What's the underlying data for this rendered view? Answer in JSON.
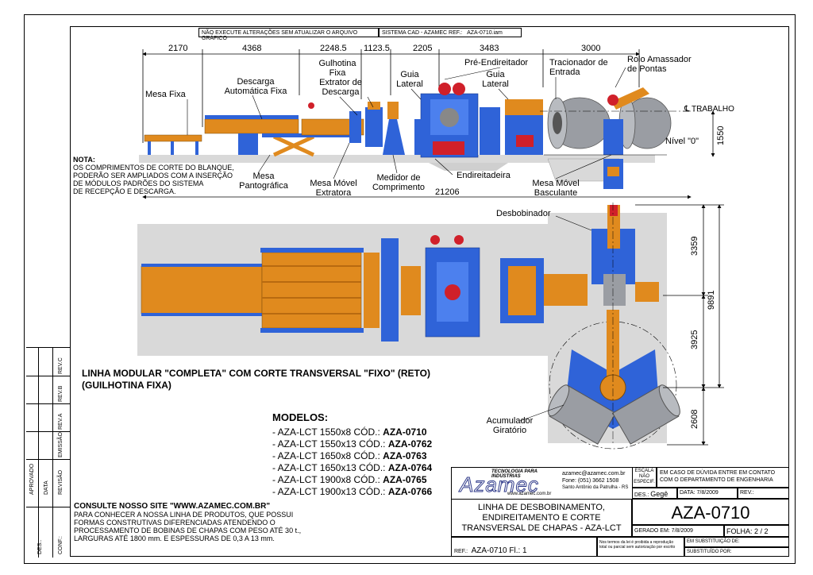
{
  "header": {
    "warning": "NÃO EXECUTE ALTERAÇÕES SEM ATUALIZAR O ARQUIVO GRÁFICO",
    "cad_ref_label": "SISTEMA CAD - AZAMEC REF.:",
    "cad_ref_value": "AZA-0710.iam"
  },
  "top_dimensions": [
    "2170",
    "4368",
    "2248.5",
    "1123.5",
    "2205",
    "3483",
    "3000"
  ],
  "overall_dimension": "21206",
  "vertical_dimensions": {
    "height": "1550",
    "d1": "3359",
    "d2": "3925",
    "total": "9891",
    "d3": "2608"
  },
  "labels": {
    "mesa_fixa": "Mesa Fixa",
    "descarga_auto": [
      "Descarga",
      "Automática Fixa"
    ],
    "gulhotina": [
      "Gulhotina",
      "Fixa"
    ],
    "extrator": [
      "Extrator de",
      "Descarga"
    ],
    "guia_lateral_1": [
      "Guia",
      "Lateral"
    ],
    "pre_endireitador": "Pré-Endireitador",
    "guia_lateral_2": [
      "Guia",
      "Lateral"
    ],
    "tracionador": [
      "Tracionador de",
      "Entrada"
    ],
    "rolo": [
      "Rolo Amassador",
      "de Pontas"
    ],
    "trabalho": "TRABALHO",
    "nivel": "Nível \"0\"",
    "mesa_pantografica": [
      "Mesa",
      "Pantográfica"
    ],
    "mesa_movel_extratora": [
      "Mesa Móvel",
      "Extratora"
    ],
    "medidor": [
      "Medidor de",
      "Comprimento"
    ],
    "endireitadeira": "Endireitadeira",
    "mesa_basculante": [
      "Mesa Móvel",
      "Basculante"
    ],
    "desbobinador": "Desbobinador",
    "acumulador": [
      "Acumulador",
      "Giratório"
    ]
  },
  "nota": [
    "NOTA:",
    "OS COMPRIMENTOS DE CORTE DO BLANQUE,",
    "PODERÃO SER AMPLIADOS COM A INSERÇÃO",
    "DE MÓDULOS PADRÕES DO SISTEMA",
    "DE RECEPÇÃO E DESCARGA."
  ],
  "title_main": [
    "LINHA MODULAR \"COMPLETA\" COM CORTE TRANSVERSAL \"FIXO\" (RETO)",
    "(GUILHOTINA FIXA)"
  ],
  "modelos_title": "MODELOS:",
  "modelos": [
    {
      "prefix": "- AZA-LCT 1550x8 CÓD.: ",
      "code": "AZA-0710"
    },
    {
      "prefix": "- AZA-LCT 1550x13 CÓD.: ",
      "code": "AZA-0762"
    },
    {
      "prefix": "- AZA-LCT 1650x8 CÓD.: ",
      "code": "AZA-0763"
    },
    {
      "prefix": "- AZA-LCT 1650x13 CÓD.: ",
      "code": "AZA-0764"
    },
    {
      "prefix": "- AZA-LCT 1900x8 CÓD.: ",
      "code": "AZA-0765"
    },
    {
      "prefix": "- AZA-LCT 1900x13 CÓD.: ",
      "code": "AZA-0766"
    }
  ],
  "consulte": [
    "CONSULTE NOSSO SITE \"WWW.AZAMEC.COM.BR\"",
    "PARA CONHECER A NOSSA LINHA DE PRODUTOS, QUE POSSUI",
    "FORMAS CONSTRUTIVAS DIFERENCIADAS ATENDENDO O",
    "PROCESSAMENTO DE BOBINAS DE CHAPAS COM PESO ATÉ 30 t.,",
    "LARGURAS ATÉ 1800 mm. E ESPESSURAS DE 0,3 A 13 mm."
  ],
  "left_strip": {
    "rev": [
      "REV.C",
      "REV.B",
      "REV.A"
    ],
    "emissao": "EMISSÃO",
    "revisao": "REVISÃO",
    "data": "DATA",
    "aprovado": "APROVADO",
    "des": "DES.:",
    "conf": "CONF.:"
  },
  "title_block": {
    "tagline": "TECNOLOGIA PARA INDÚSTRIAS",
    "logo": "Azamec",
    "web": "www.azamec.com.br",
    "email": "azamec@azamec.com.br",
    "fone": "Fone: (051) 3662 1508",
    "city": "Santo Antônio da Patrulha - RS",
    "escala": [
      "ESCALA",
      "NÃO",
      "ESPECIF."
    ],
    "duvida": [
      "EM CASO DE DÚVIDA ENTRE EM CONTATO",
      "COM O DEPARTAMENTO DE ENGENHARIA"
    ],
    "des_label": "DES.:",
    "des_value": "Gegê",
    "data_label": "DATA:",
    "data_value": "7/8/2009",
    "rev_label": "REV.:",
    "description": [
      "LINHA DE DESBOBINAMENTO,",
      "ENDIREITAMENTO E CORTE",
      "TRANSVERSAL DE CHAPAS - AZA-LCT"
    ],
    "code": "AZA-0710",
    "gerado": "GERADO EM: 7/8/2009",
    "folha": "FOLHA:  2  /  2",
    "ref_label": "REF.:",
    "ref_value": "AZA-0710 Fl.: 1",
    "legal": [
      "Nos termos da lei é proibida a reprodução",
      "total ou parcial sem autorização por escrito"
    ],
    "substituicao": "EM SUBSTITUIÇÃO DE:",
    "substituido": "SUBSTITUÍDO POR:"
  },
  "colors": {
    "machine_blue": "#2f63d8",
    "machine_orange": "#e08a1e",
    "machine_red": "#d0202a",
    "coil_gray": "#9a9da3",
    "floor_gray": "#d9d9d9"
  }
}
